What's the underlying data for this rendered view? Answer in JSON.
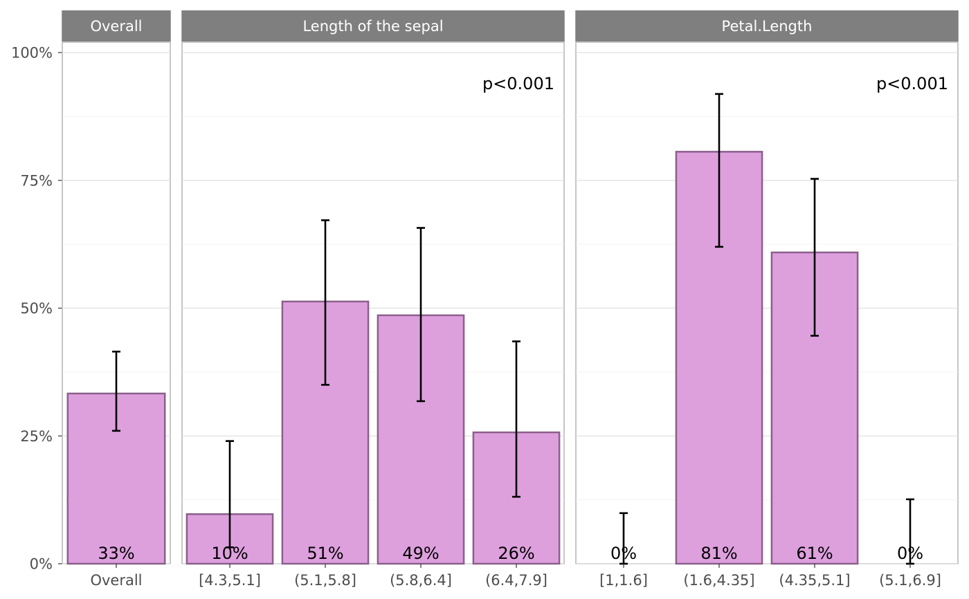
{
  "chart_data": {
    "type": "bar",
    "y_axis": {
      "ylim": [
        0,
        1
      ],
      "ticks": [
        0,
        0.25,
        0.5,
        0.75,
        1
      ],
      "tick_labels": [
        "0%",
        "25%",
        "50%",
        "75%",
        "100%"
      ]
    },
    "bar_color": "#dda0dd",
    "bar_outline": "#8b5f8b",
    "panels": [
      {
        "strip_label": "Overall",
        "p_value": "",
        "categories": [
          "Overall"
        ],
        "values": [
          0.333
        ],
        "ci_low": [
          0.26
        ],
        "ci_high": [
          0.415
        ],
        "labels": [
          "33%"
        ]
      },
      {
        "strip_label": "Length of the sepal",
        "p_value": "p<0.001",
        "categories": [
          "[4.3,5.1]",
          "(5.1,5.8]",
          "(5.8,6.4]",
          "(6.4,7.9]"
        ],
        "values": [
          0.097,
          0.513,
          0.486,
          0.257
        ],
        "ci_low": [
          0.032,
          0.35,
          0.318,
          0.131
        ],
        "ci_high": [
          0.24,
          0.672,
          0.657,
          0.435
        ],
        "labels": [
          "10%",
          "51%",
          "49%",
          "26%"
        ]
      },
      {
        "strip_label": "Petal.Length",
        "p_value": "p<0.001",
        "categories": [
          "[1,1.6]",
          "(1.6,4.35]",
          "(4.35,5.1]",
          "(5.1,6.9]"
        ],
        "values": [
          0,
          0.806,
          0.609,
          0
        ],
        "ci_low": [
          0,
          0.62,
          0.446,
          0
        ],
        "ci_high": [
          0.099,
          0.919,
          0.753,
          0.126
        ],
        "labels": [
          "0%",
          "81%",
          "61%",
          "0%"
        ]
      }
    ]
  }
}
